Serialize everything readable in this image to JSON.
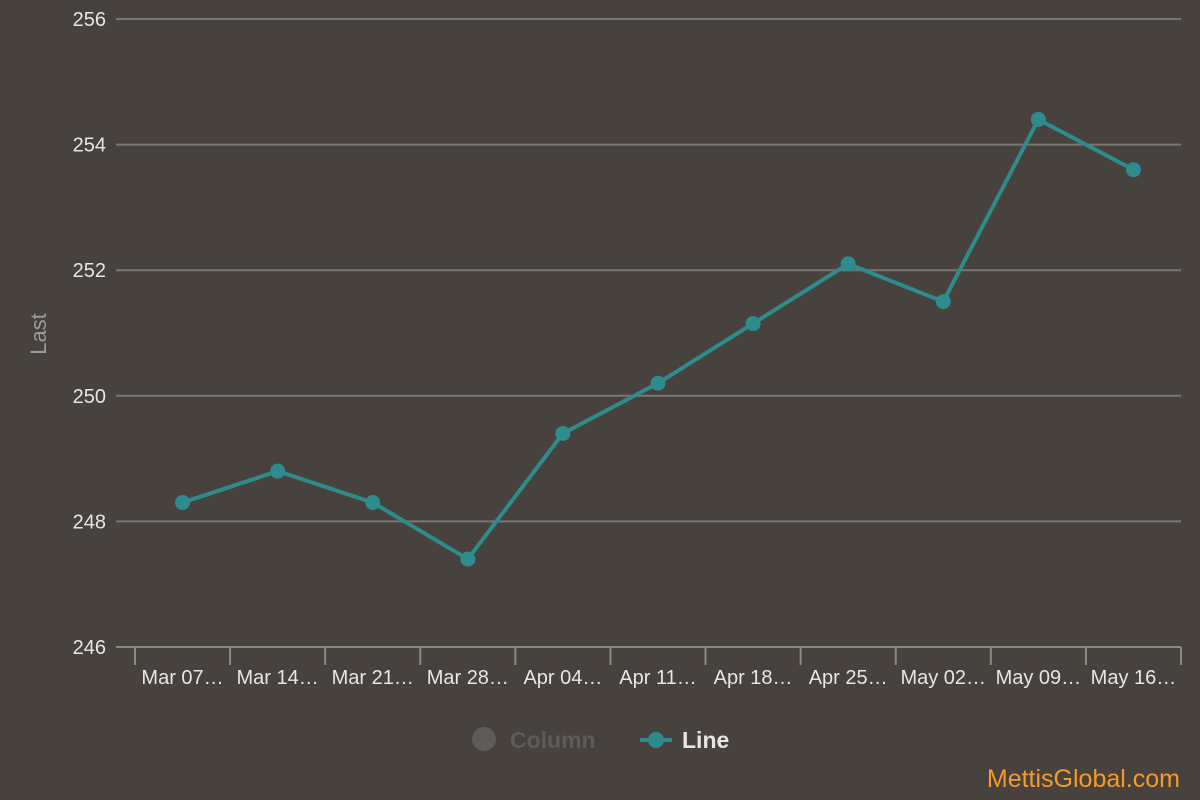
{
  "chart_data": {
    "type": "line",
    "categories": [
      "Mar 07…",
      "Mar 14…",
      "Mar 21…",
      "Mar 28…",
      "Apr 04…",
      "Apr 11…",
      "Apr 18…",
      "Apr 25…",
      "May 02…",
      "May 09…",
      "May 16…"
    ],
    "series": [
      {
        "name": "Line",
        "values": [
          248.3,
          248.8,
          248.3,
          247.4,
          249.4,
          250.2,
          251.15,
          252.1,
          251.5,
          254.4,
          253.6
        ],
        "color": "#2e8b8e"
      }
    ],
    "ylabel": "Last",
    "ylim": [
      246,
      256
    ],
    "yticks": [
      "246",
      "248",
      "250",
      "252",
      "254",
      "256"
    ],
    "grid": true,
    "legend_position": "bottom-center"
  },
  "legend": {
    "items": [
      {
        "label": "Column",
        "active": false,
        "color": "#5f5b58"
      },
      {
        "label": "Line",
        "active": true,
        "color": "#2e8b8e"
      }
    ]
  },
  "watermark": "MettisGlobal.com",
  "colors": {
    "background": "#47423e",
    "grid": "#7a7673",
    "axis": "#8c8884",
    "watermark": "#f39a2b"
  }
}
